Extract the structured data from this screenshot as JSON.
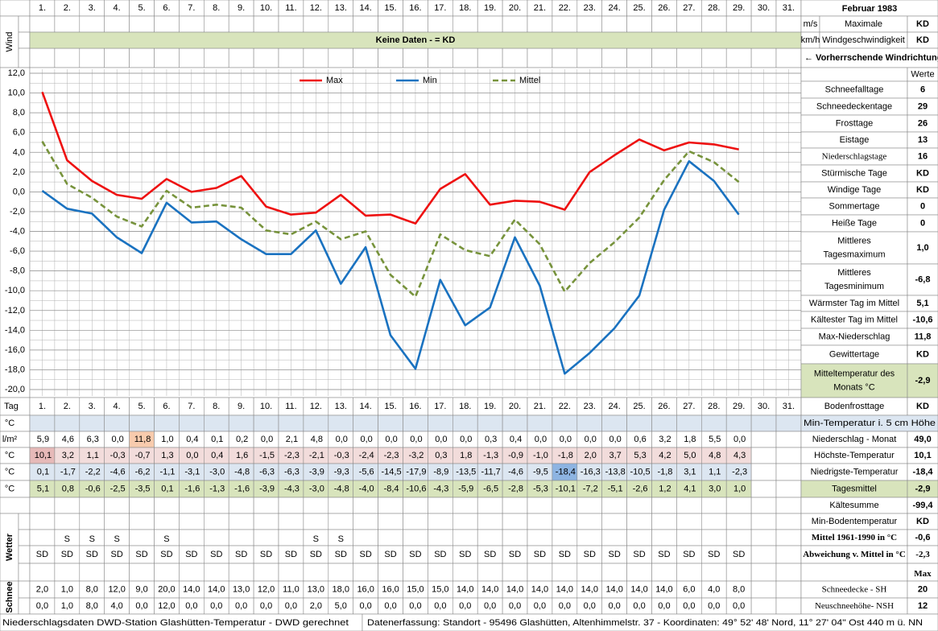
{
  "days": [
    "1.",
    "2.",
    "3.",
    "4.",
    "5.",
    "6.",
    "7.",
    "8.",
    "9.",
    "10.",
    "11.",
    "12.",
    "13.",
    "14.",
    "15.",
    "16.",
    "17.",
    "18.",
    "19.",
    "20.",
    "21.",
    "22.",
    "23.",
    "24.",
    "25.",
    "26.",
    "27.",
    "28.",
    "29.",
    "30.",
    "31."
  ],
  "month_title": "Februar 1983",
  "wind": {
    "label": "Wind",
    "units": [
      "m/s",
      "km/h"
    ],
    "max_label": [
      "Maximale",
      "Windgeschwindigkeit"
    ],
    "max_values": [
      "KD",
      "KD"
    ],
    "direction_label": "← Vorherrschende Windrichtung",
    "no_data": "Keine Daten -  = KD"
  },
  "chart_data": {
    "type": "line",
    "legend": "top",
    "grid": true,
    "ylim": [
      -20,
      12
    ],
    "yticks": [
      {
        "value": 12,
        "label": "12,0"
      },
      {
        "value": 10,
        "label": "10,0"
      },
      {
        "value": 8,
        "label": "8,0"
      },
      {
        "value": 6,
        "label": "6,0"
      },
      {
        "value": 4,
        "label": "4,0"
      },
      {
        "value": 2,
        "label": "2,0"
      },
      {
        "value": 0,
        "label": "0,0"
      },
      {
        "value": -2,
        "label": "-2,0"
      },
      {
        "value": -4,
        "label": "-4,0"
      },
      {
        "value": -6,
        "label": "-6,0"
      },
      {
        "value": -8,
        "label": "-8,0"
      },
      {
        "value": -10,
        "label": "-10,0"
      },
      {
        "value": -12,
        "label": "-12,0"
      },
      {
        "value": -14,
        "label": "-14,0"
      },
      {
        "value": -16,
        "label": "-16,0"
      },
      {
        "value": -18,
        "label": "-18,0"
      },
      {
        "value": -20,
        "label": "-20,0"
      }
    ],
    "series": [
      {
        "name": "Max",
        "color": "#ee1111",
        "line_style": "solid",
        "values": [
          10.1,
          3.2,
          1.1,
          -0.3,
          -0.7,
          1.3,
          0,
          0.4,
          1.6,
          -1.5,
          -2.3,
          -2.1,
          -0.3,
          -2.4,
          -2.3,
          -3.2,
          0.3,
          1.8,
          -1.3,
          -0.9,
          -1,
          -1.8,
          2,
          3.7,
          5.3,
          4.2,
          5,
          4.8,
          4.3
        ],
        "value_labels": [
          "10,1",
          "3,2",
          "1,1",
          "-0,3",
          "-0,7",
          "1,3",
          "0,0",
          "0,4",
          "1,6",
          "-1,5",
          "-2,3",
          "-2,1",
          "-0,3",
          "-2,4",
          "-2,3",
          "-3,2",
          "0,3",
          "1,8",
          "-1,3",
          "-0,9",
          "-1,0",
          "-1,8",
          "2,0",
          "3,7",
          "5,3",
          "4,2",
          "5,0",
          "4,8",
          "4,3"
        ]
      },
      {
        "name": "Min",
        "color": "#1a72c0",
        "line_style": "solid",
        "values": [
          0.1,
          -1.7,
          -2.2,
          -4.6,
          -6.2,
          -1.1,
          -3.1,
          -3,
          -4.8,
          -6.3,
          -6.3,
          -3.9,
          -9.3,
          -5.6,
          -14.5,
          -17.9,
          -8.9,
          -13.5,
          -11.7,
          -4.6,
          -9.5,
          -18.4,
          -16.3,
          -13.8,
          -10.5,
          -1.8,
          3.1,
          1.1,
          -2.3
        ],
        "value_labels": [
          "0,1",
          "-1,7",
          "-2,2",
          "-4,6",
          "-6,2",
          "-1,1",
          "-3,1",
          "-3,0",
          "-4,8",
          "-6,3",
          "-6,3",
          "-3,9",
          "-9,3",
          "-5,6",
          "-14,5",
          "-17,9",
          "-8,9",
          "-13,5",
          "-11,7",
          "-4,6",
          "-9,5",
          "-18,4",
          "-16,3",
          "-13,8",
          "-10,5",
          "-1,8",
          "3,1",
          "1,1",
          "-2,3"
        ]
      },
      {
        "name": "Mittel",
        "color": "#77933c",
        "line_style": "dashed",
        "values": [
          5.1,
          0.8,
          -0.6,
          -2.5,
          -3.5,
          0.1,
          -1.6,
          -1.3,
          -1.6,
          -3.9,
          -4.3,
          -3,
          -4.8,
          -4,
          -8.4,
          -10.6,
          -4.3,
          -5.9,
          -6.5,
          -2.8,
          -5.3,
          -10.1,
          -7.2,
          -5.1,
          -2.6,
          1.2,
          4.1,
          3,
          1
        ],
        "value_labels": [
          "5,1",
          "0,8",
          "-0,6",
          "-2,5",
          "-3,5",
          "0,1",
          "-1,6",
          "-1,3",
          "-1,6",
          "-3,9",
          "-4,3",
          "-3,0",
          "-4,8",
          "-4,0",
          "-8,4",
          "-10,6",
          "-4,3",
          "-5,9",
          "-6,5",
          "-2,8",
          "-5,3",
          "-10,1",
          "-7,2",
          "-5,1",
          "-2,6",
          "1,2",
          "4,1",
          "3,0",
          "1,0"
        ]
      }
    ]
  },
  "stats_header": "Werte",
  "stats": [
    {
      "label": [
        "Schneefalltage"
      ],
      "value": "6"
    },
    {
      "label": [
        "Schneedeckentage"
      ],
      "value": "29"
    },
    {
      "label": [
        "Frosttage"
      ],
      "value": "26"
    },
    {
      "label": [
        "Eistage"
      ],
      "value": "13"
    },
    {
      "label": [
        "Niederschlagstage"
      ],
      "value": "16"
    },
    {
      "label": [
        "Stürmische Tage"
      ],
      "value": "KD"
    },
    {
      "label": [
        "Windige Tage"
      ],
      "value": "KD"
    },
    {
      "label": [
        "Sommertage"
      ],
      "value": "0"
    },
    {
      "label": [
        "Heiße Tage"
      ],
      "value": "0"
    },
    {
      "label": [
        "Mittleres",
        "Tagesmaximum"
      ],
      "value": "1,0"
    },
    {
      "label": [
        "Mittleres",
        "Tagesminimum"
      ],
      "value": "-6,8"
    },
    {
      "label": [
        "Wärmster Tag im Mittel"
      ],
      "value": "5,1"
    },
    {
      "label": [
        "Kältester Tag im Mittel"
      ],
      "value": "-10,6"
    },
    {
      "label": [
        "Max-Niederschlag"
      ],
      "value": "11,8"
    },
    {
      "label": [
        "Gewittertage"
      ],
      "value": "KD"
    },
    {
      "label": [
        "Mitteltemperatur des",
        "Monats °C"
      ],
      "value": "-2,9"
    },
    {
      "label": [
        "Bodenfrosttage"
      ],
      "value": "KD"
    }
  ],
  "table": {
    "tag_label": "Tag",
    "rows": [
      {
        "unit": "°C",
        "label": "Min-Temperatur i. 5 cm Höhe"
      },
      {
        "unit": "l/m²",
        "label": "Niederschlag - Monat",
        "total": "49,0",
        "values": [
          "5,9",
          "4,6",
          "6,3",
          "0,0",
          "11,8",
          "1,0",
          "0,4",
          "0,1",
          "0,2",
          "0,0",
          "2,1",
          "4,8",
          "0,0",
          "0,0",
          "0,0",
          "0,0",
          "0,0",
          "0,0",
          "0,3",
          "0,4",
          "0,0",
          "0,0",
          "0,0",
          "0,0",
          "0,6",
          "3,2",
          "1,8",
          "5,5",
          "0,0"
        ]
      },
      {
        "unit": "°C",
        "label": "Höchste-Temperatur",
        "total": "10,1"
      },
      {
        "unit": "°C",
        "label": "Niedrigste-Temperatur",
        "total": "-18,4"
      },
      {
        "unit": "°C",
        "label": "Tagesmittel",
        "total": "-2,9"
      }
    ]
  },
  "summary": [
    {
      "label": "Kältesumme",
      "value": "-99,4"
    },
    {
      "label": "Min-Bodentemperatur",
      "value": "KD"
    },
    {
      "label": "Mittel 1961-1990 in °C",
      "value": "-0,6"
    },
    {
      "label": "Abweichung v. Mittel in °C",
      "value": "-2,3"
    }
  ],
  "weather": {
    "label": "Wetter",
    "snowfall": [
      null,
      "S",
      "S",
      "S",
      null,
      "S",
      null,
      null,
      null,
      null,
      null,
      "S",
      "S",
      null,
      null,
      null,
      null,
      null,
      null,
      null,
      null,
      null,
      null,
      null,
      null,
      null,
      null,
      null,
      null
    ],
    "codes": [
      "SD",
      "SD",
      "SD",
      "SD",
      "SD",
      "SD",
      "SD",
      "SD",
      "SD",
      "SD",
      "SD",
      "SD",
      "SD",
      "SD",
      "SD",
      "SD",
      "SD",
      "SD",
      "SD",
      "SD",
      "SD",
      "SD",
      "SD",
      "SD",
      "SD",
      "SD",
      "SD",
      "SD",
      "SD"
    ]
  },
  "snow": {
    "label": "Schnee",
    "max_header": "Max",
    "rows": [
      {
        "label": "Schneedecke -  SH",
        "max": "20",
        "values": [
          "2,0",
          "1,0",
          "8,0",
          "12,0",
          "9,0",
          "20,0",
          "14,0",
          "14,0",
          "13,0",
          "12,0",
          "11,0",
          "13,0",
          "18,0",
          "16,0",
          "16,0",
          "15,0",
          "15,0",
          "14,0",
          "14,0",
          "14,0",
          "14,0",
          "14,0",
          "14,0",
          "14,0",
          "14,0",
          "14,0",
          "6,0",
          "4,0",
          "8,0"
        ]
      },
      {
        "label": "Neuschneehöhe- NSH",
        "max": "12",
        "values": [
          "0,0",
          "1,0",
          "8,0",
          "4,0",
          "0,0",
          "12,0",
          "0,0",
          "0,0",
          "0,0",
          "0,0",
          "0,0",
          "2,0",
          "5,0",
          "0,0",
          "0,0",
          "0,0",
          "0,0",
          "0,0",
          "0,0",
          "0,0",
          "0,0",
          "0,0",
          "0,0",
          "0,0",
          "0,0",
          "0,0",
          "0,0",
          "0,0",
          "0,0"
        ]
      }
    ]
  },
  "footer": {
    "left": "Niederschlagsdaten DWD-Station Glashütten-Temperatur -  DWD gerechnet",
    "right": "Datenerfassung: Standort - 95496 Glashütten, Altenhimmelstr. 37 - Koordinaten: 49° 52' 48' Nord,  11° 27' 04\" Ost  440 m ü. NN"
  }
}
